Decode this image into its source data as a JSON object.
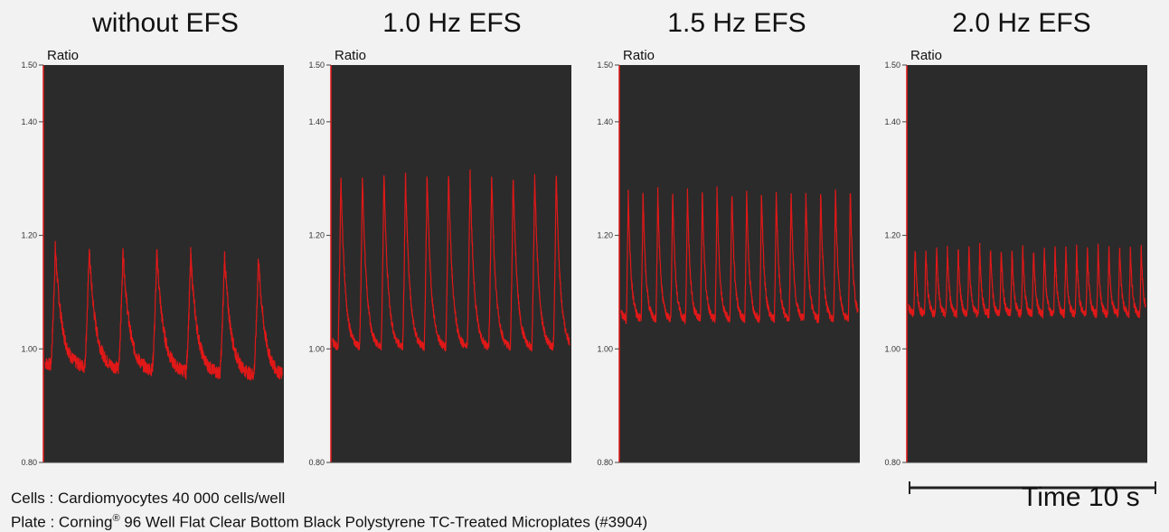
{
  "colors": {
    "trace": "#e01818",
    "plot_bg": "#2b2b2b",
    "page_bg": "#f2f2f2",
    "axis": "#e01818"
  },
  "chart_data": [
    {
      "type": "line",
      "title": "without EFS",
      "ylabel": "Ratio",
      "ylim": [
        0.8,
        1.5
      ],
      "yticks": [
        "1.50",
        "1.40",
        "1.20",
        "1.00",
        "0.80"
      ],
      "series": [
        {
          "peaks": 7,
          "high": 1.18,
          "low": 0.97,
          "baseline_drift": -0.02
        }
      ]
    },
    {
      "type": "line",
      "title": "1.0 Hz EFS",
      "ylabel": "Ratio",
      "ylim": [
        0.8,
        1.5
      ],
      "yticks": [
        "1.50",
        "1.40",
        "1.20",
        "1.00",
        "0.80"
      ],
      "series": [
        {
          "peaks": 11,
          "high": 1.31,
          "low": 1.0,
          "baseline_drift": 0.0
        }
      ]
    },
    {
      "type": "line",
      "title": "1.5 Hz EFS",
      "ylabel": "Ratio",
      "ylim": [
        0.8,
        1.5
      ],
      "yticks": [
        "1.50",
        "1.40",
        "1.20",
        "1.00",
        "0.80"
      ],
      "series": [
        {
          "peaks": 16,
          "high": 1.28,
          "low": 1.05,
          "baseline_drift": 0.0
        }
      ]
    },
    {
      "type": "line",
      "title": "2.0 Hz EFS",
      "ylabel": "Ratio",
      "ylim": [
        0.8,
        1.5
      ],
      "yticks": [
        "1.50",
        "1.40",
        "1.20",
        "1.00",
        "0.80"
      ],
      "series": [
        {
          "peaks": 22,
          "high": 1.18,
          "low": 1.06,
          "baseline_drift": 0.0
        }
      ]
    }
  ],
  "footer": {
    "cells": "Cells : Cardiomyocytes 40 000 cells/well",
    "plate_prefix": "Plate : Corning",
    "plate_reg": "®",
    "plate_suffix": " 96 Well Flat Clear Bottom Black Polystyrene TC-Treated Microplates (#3904)"
  },
  "scale_bar": {
    "label": "Time 10 s"
  }
}
